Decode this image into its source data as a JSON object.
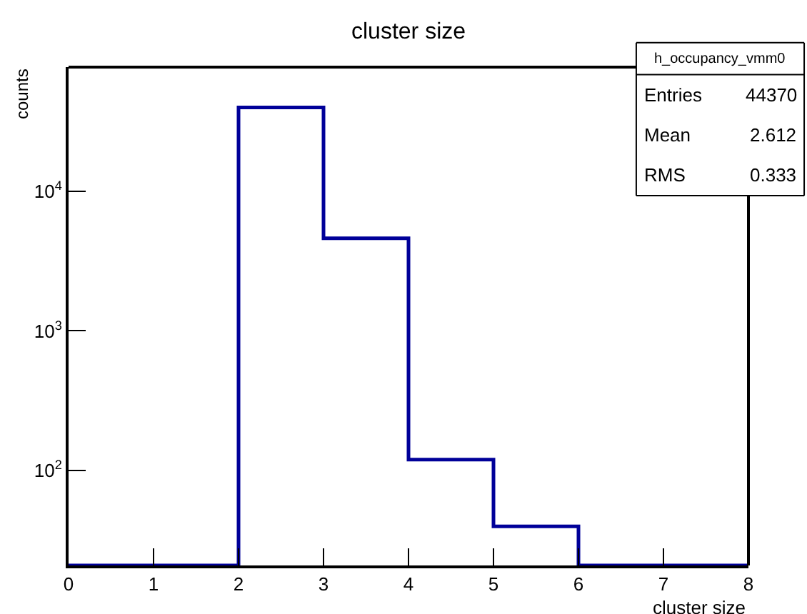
{
  "chart_data": {
    "type": "histogram",
    "title": "cluster size",
    "xlabel": "cluster size",
    "ylabel": "counts",
    "bins": [
      0,
      1,
      2,
      3,
      4,
      5,
      6,
      7,
      8
    ],
    "values": [
      null,
      null,
      39600,
      4600,
      120,
      40,
      null,
      null
    ],
    "color": "#000099",
    "xlim": [
      0,
      8
    ],
    "xticks": [
      0,
      1,
      2,
      3,
      4,
      5,
      6,
      7,
      8
    ],
    "ylim": [
      21,
      77000
    ],
    "yticks": [
      {
        "value": 100,
        "label": "10$^{2}$"
      },
      {
        "value": 1000,
        "label": "10$^{3}$"
      },
      {
        "value": 10000,
        "label": "10$^{4}$"
      }
    ],
    "log": "y",
    "annotations": [
      "h_occupancy_vmm0",
      "Entries",
      "44370",
      "Mean",
      "2.612",
      "RMS",
      "0.333"
    ]
  }
}
